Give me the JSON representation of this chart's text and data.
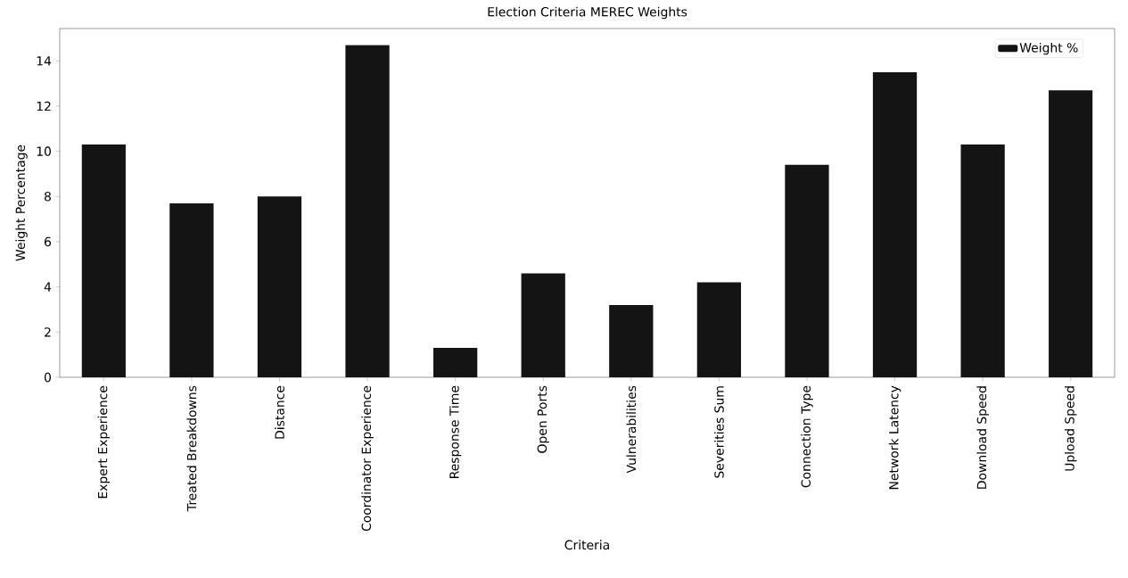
{
  "chart_data": {
    "type": "bar",
    "title": "Election Criteria MEREC Weights",
    "xlabel": "Criteria",
    "ylabel": "Weight Percentage",
    "categories": [
      "Expert Experience",
      "Treated Breakdowns",
      "Distance",
      "Coordinator Experience",
      "Response Time",
      "Open Ports",
      "Vulnerabilities",
      "Severities Sum",
      "Connection Type",
      "Network Latency",
      "Download Speed",
      "Upload Speed"
    ],
    "series": [
      {
        "name": "Weight %",
        "color": "#141414",
        "values": [
          10.3,
          7.7,
          8.0,
          14.7,
          1.3,
          4.6,
          3.2,
          4.2,
          9.4,
          13.5,
          10.3,
          12.7
        ]
      }
    ],
    "ylim": [
      0,
      15.43
    ],
    "yticks": [
      0,
      2,
      4,
      6,
      8,
      10,
      12,
      14
    ],
    "legend": "top right"
  }
}
